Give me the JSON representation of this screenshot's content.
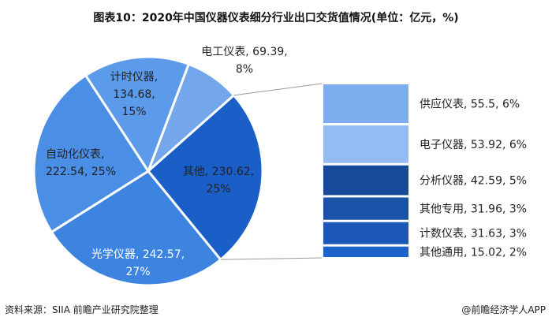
{
  "title": "图表10：2020年中国仪器仪表细分行业出口交货值情况(单位：亿元，%)",
  "source": "资料来源：SIIA 前瞻产业研究院整理",
  "brand": "@前瞻经济学人APP",
  "chart_data": {
    "type": "bar-of-pie",
    "title": "图表10：2020年中国仪器仪表细分行业出口交货值情况(单位：亿元，%)",
    "pie": {
      "start_angle_deg": 20.7,
      "slices": [
        {
          "name": "电工仪表",
          "value": 69.39,
          "percent": "8%",
          "label": "电工仪表, 69.39,",
          "label2": "8%",
          "color": "#74a6ec",
          "text_color": "#222222"
        },
        {
          "name": "其他",
          "value": 230.62,
          "percent": "25%",
          "label": "其他, 230.62,",
          "label2": "25%",
          "color": "#1a5fc8",
          "text_color": "#222222"
        },
        {
          "name": "光学仪器",
          "value": 242.57,
          "percent": "27%",
          "label": "光学仪器, 242.57,",
          "label2": "27%",
          "color": "#3d84e0",
          "text_color": "#ffffff"
        },
        {
          "name": "自动化仪表",
          "value": 222.54,
          "percent": "25%",
          "label": "自动化仪表,",
          "label2": "222.54, 25%",
          "color": "#4a8ee6",
          "text_color": "#222222"
        },
        {
          "name": "计时仪器",
          "value": 134.68,
          "percent": "15%",
          "label": "计时仪器,",
          "label2": "134.68,",
          "label3": "15%",
          "color": "#5c9aea",
          "text_color": "#222222"
        }
      ]
    },
    "bar": {
      "breakdown_of": "其他",
      "segments": [
        {
          "name": "供应仪表",
          "value": 55.5,
          "percent": "6%",
          "label": "供应仪表, 55.5, 6%",
          "color": "#7eaef0"
        },
        {
          "name": "电子仪器",
          "value": 53.92,
          "percent": "6%",
          "label": "电子仪器, 53.92, 6%",
          "color": "#93bdf2"
        },
        {
          "name": "分析仪器",
          "value": 42.59,
          "percent": "5%",
          "label": "分析仪器, 42.59, 5%",
          "color": "#174a98"
        },
        {
          "name": "其他专用",
          "value": 31.96,
          "percent": "3%",
          "label": "其他专用, 31.96, 3%",
          "color": "#1a52a8"
        },
        {
          "name": "计数仪表",
          "value": 31.63,
          "percent": "3%",
          "label": "计数仪表, 31.63, 3%",
          "color": "#1c58b8"
        },
        {
          "name": "其他通用",
          "value": 15.02,
          "percent": "2%",
          "label": "其他通用, 15.02, 2%",
          "color": "#1e62cc"
        }
      ]
    }
  }
}
